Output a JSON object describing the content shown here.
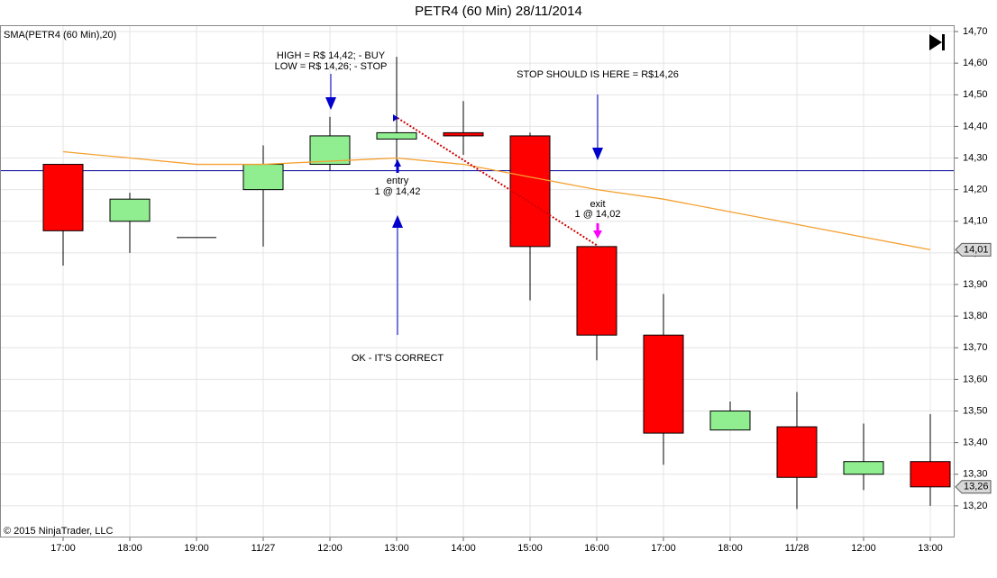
{
  "chart_data": {
    "type": "candlestick",
    "title": "PETR4 (60 Min)  28/11/2014",
    "categories": [
      "17:00",
      "18:00",
      "19:00",
      "11/27",
      "12:00",
      "13:00",
      "14:00",
      "15:00",
      "16:00",
      "17:00",
      "18:00",
      "11/28",
      "12:00",
      "13:00"
    ],
    "open": [
      14.28,
      14.1,
      14.05,
      14.2,
      14.28,
      14.36,
      14.38,
      14.37,
      14.02,
      13.74,
      13.44,
      13.45,
      13.3,
      13.34
    ],
    "high": [
      14.28,
      14.19,
      14.05,
      14.34,
      14.43,
      14.62,
      14.48,
      14.38,
      14.02,
      13.87,
      13.53,
      13.56,
      13.46,
      13.49
    ],
    "low": [
      13.96,
      14.0,
      14.05,
      14.02,
      14.26,
      14.28,
      14.31,
      13.85,
      13.66,
      13.33,
      13.44,
      13.19,
      13.25,
      13.2
    ],
    "close": [
      14.07,
      14.17,
      14.05,
      14.28,
      14.37,
      14.38,
      14.37,
      14.02,
      13.74,
      13.43,
      13.5,
      13.29,
      13.34,
      13.26
    ],
    "up_color": "#90ee90",
    "down_color": "#ff0000",
    "indicator": {
      "name": "SMA(PETR4 (60 Min),20)",
      "color": "#f5a030",
      "values": [
        14.32,
        14.3,
        14.28,
        14.28,
        14.29,
        14.3,
        14.28,
        14.24,
        14.2,
        14.17,
        14.13,
        14.09,
        14.05,
        14.01
      ]
    },
    "hline": {
      "value": 14.26,
      "color": "#1a1aa0"
    },
    "price_tags": [
      {
        "value": 14.01,
        "label": "14,01"
      },
      {
        "value": 13.26,
        "label": "13,26"
      }
    ],
    "ylim": [
      13.1,
      14.72
    ],
    "yticks": [
      {
        "value": 14.7,
        "label": "14,70"
      },
      {
        "value": 14.6,
        "label": "14,60"
      },
      {
        "value": 14.5,
        "label": "14,50"
      },
      {
        "value": 14.4,
        "label": "14,40"
      },
      {
        "value": 14.3,
        "label": "14,30"
      },
      {
        "value": 14.2,
        "label": "14,20"
      },
      {
        "value": 14.1,
        "label": "14,10"
      },
      {
        "value": 14.0,
        "label": "14,00"
      },
      {
        "value": 13.9,
        "label": "13,90"
      },
      {
        "value": 13.8,
        "label": "13,80"
      },
      {
        "value": 13.7,
        "label": "13,70"
      },
      {
        "value": 13.6,
        "label": "13,60"
      },
      {
        "value": 13.5,
        "label": "13,50"
      },
      {
        "value": 13.4,
        "label": "13,40"
      },
      {
        "value": 13.3,
        "label": "13,30"
      },
      {
        "value": 13.2,
        "label": "13,20"
      }
    ],
    "grid": true,
    "annotations": [
      "HIGH = R$ 14,42; - BUY",
      "LOW = R$ 14,26; - STOP",
      "STOP SHOULD IS HERE = R$14,26",
      "entry",
      "1 @ 14,42",
      "exit",
      "1 @ 14,02",
      "OK - IT'S CORRECT"
    ],
    "copyright": "© 2015 NinjaTrader, LLC"
  }
}
